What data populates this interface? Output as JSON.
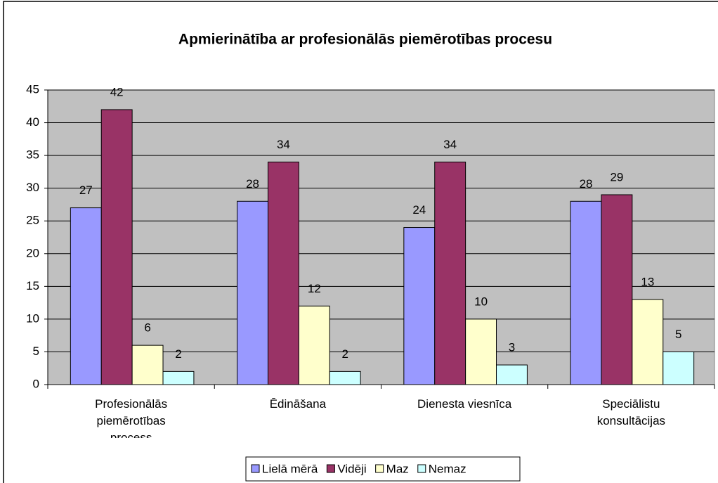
{
  "chart_data": {
    "type": "bar",
    "title": "Apmierinātība ar profesionālās piemērotības procesu",
    "categories": [
      "Profesionālās piemērotības process",
      "Ēdināšana",
      "Dienesta viesnīca",
      "Speciālistu konsultācijas"
    ],
    "series": [
      {
        "name": "Lielā mērā",
        "color": "#9999ff",
        "values": [
          27,
          28,
          24,
          28
        ]
      },
      {
        "name": "Vidēji",
        "color": "#993366",
        "values": [
          42,
          34,
          34,
          29
        ]
      },
      {
        "name": "Maz",
        "color": "#ffffcc",
        "values": [
          6,
          12,
          10,
          13
        ]
      },
      {
        "name": "Nemaz",
        "color": "#ccffff",
        "values": [
          2,
          2,
          3,
          5
        ]
      }
    ],
    "ylim": [
      0,
      45
    ],
    "yticks": [
      0,
      5,
      10,
      15,
      20,
      25,
      30,
      35,
      40,
      45
    ],
    "grid": true,
    "legend": "bottom"
  }
}
